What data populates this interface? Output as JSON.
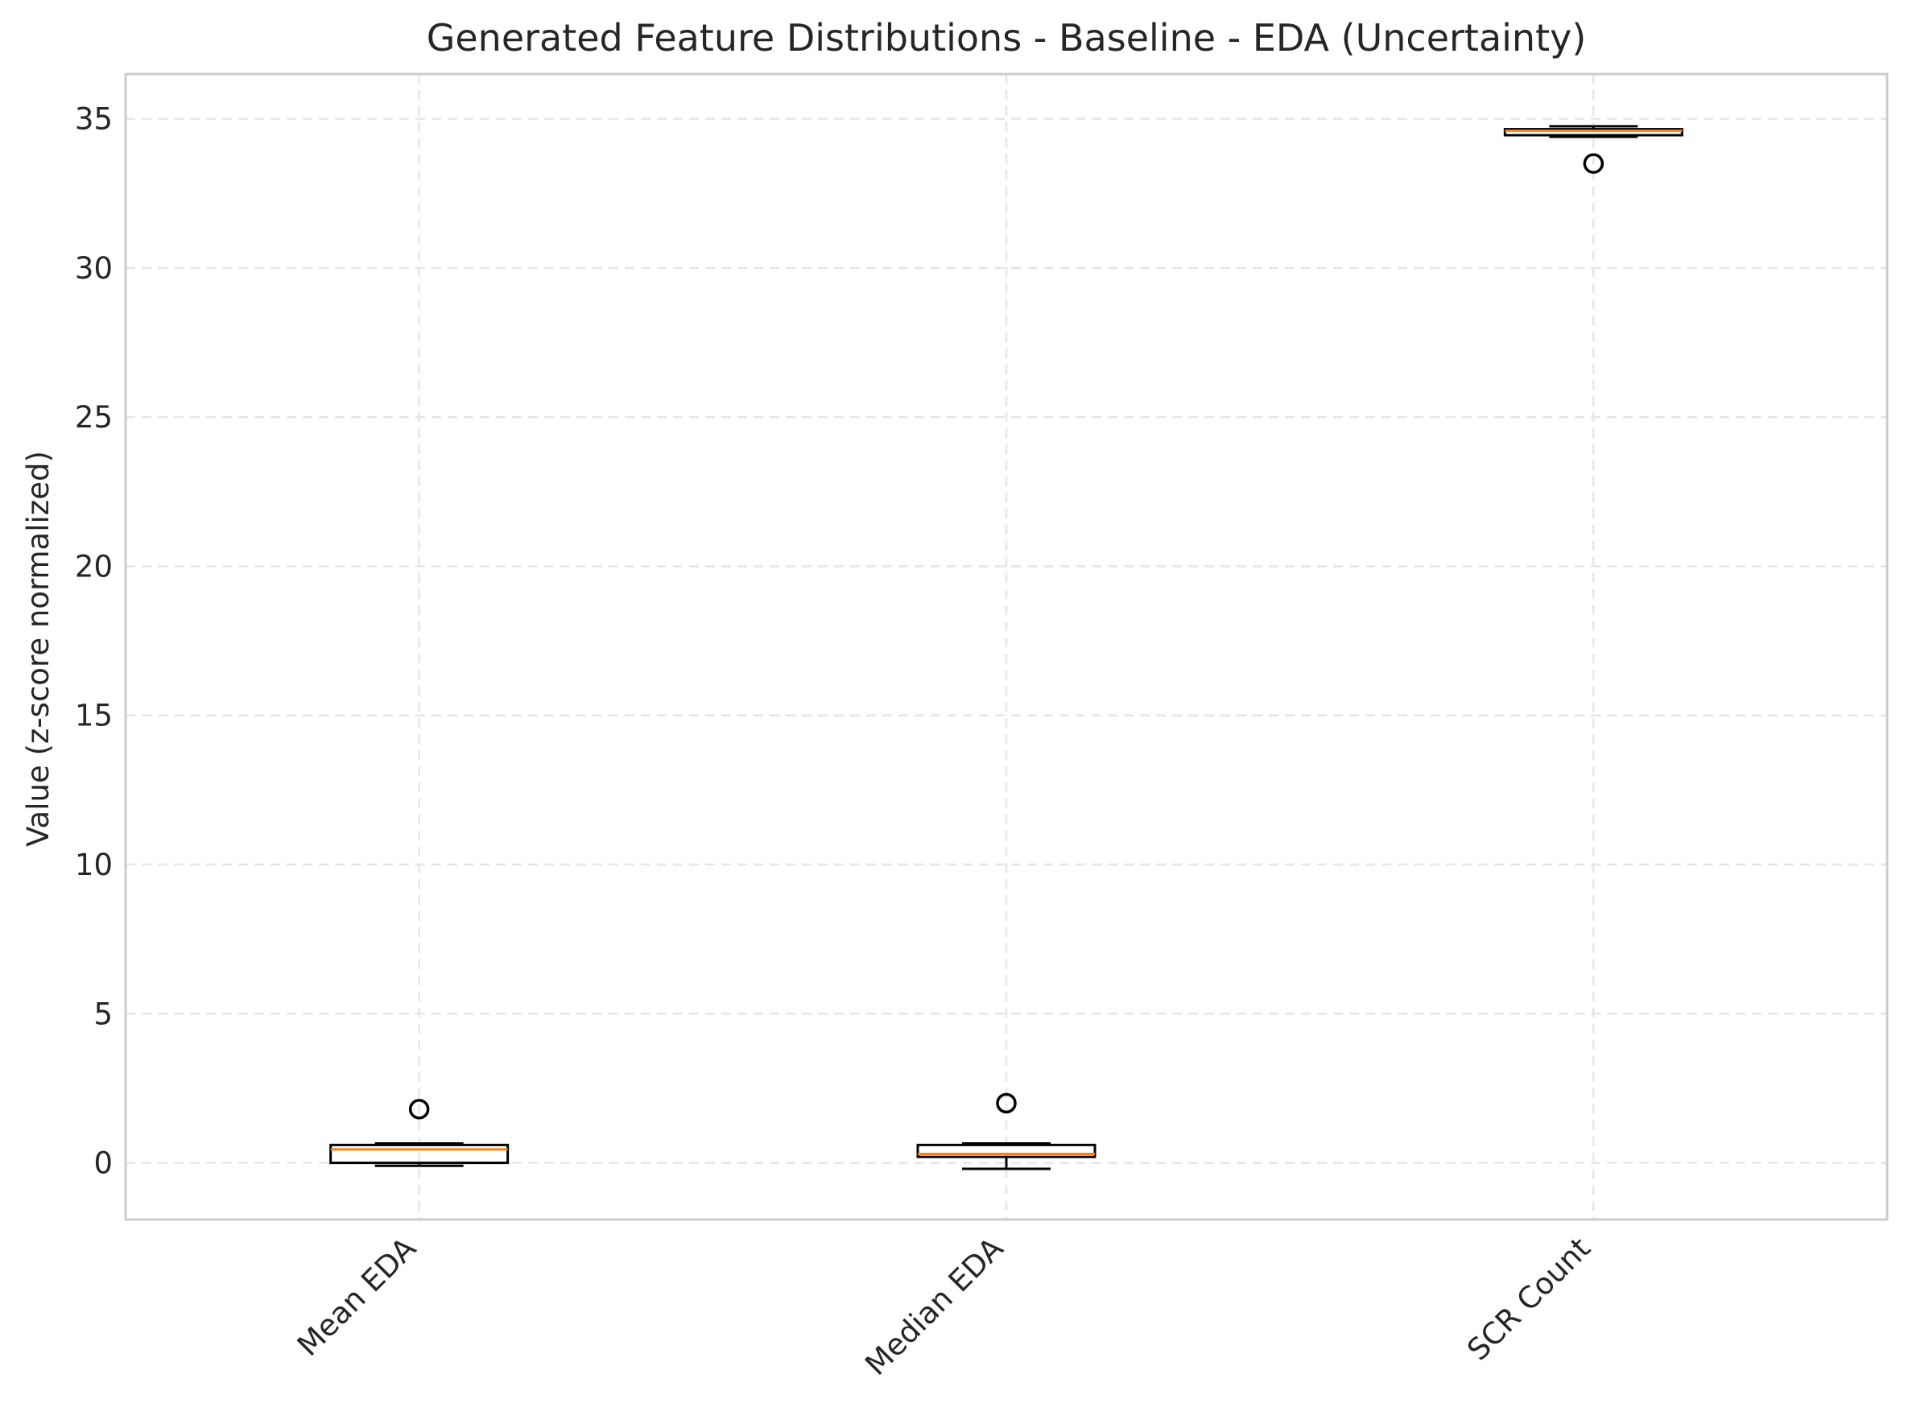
{
  "chart_data": {
    "type": "box",
    "title": "Generated Feature Distributions - Baseline - EDA (Uncertainty)",
    "xlabel": "",
    "ylabel": "Value (z-score normalized)",
    "ylim": [
      -1.9,
      36.5
    ],
    "yticks": [
      0,
      5,
      10,
      15,
      20,
      25,
      30,
      35
    ],
    "grid": true,
    "categories": [
      "Mean EDA",
      "Median EDA",
      "SCR Count"
    ],
    "boxes": [
      {
        "category": "Mean EDA",
        "whislo": -0.1,
        "q1": 0.0,
        "median": 0.45,
        "q3": 0.6,
        "whishi": 0.65,
        "fliers": [
          1.8
        ]
      },
      {
        "category": "Median EDA",
        "whislo": -0.2,
        "q1": 0.2,
        "median": 0.3,
        "q3": 0.6,
        "whishi": 0.65,
        "fliers": [
          2.0
        ]
      },
      {
        "category": "SCR Count",
        "whislo": 34.4,
        "q1": 34.45,
        "median": 34.6,
        "q3": 34.65,
        "whishi": 34.75,
        "fliers": [
          33.5
        ]
      }
    ],
    "colors": {
      "box": "#000000",
      "median": "#ff7f0e",
      "grid": "#e6e6e6",
      "axes": "#cccccc",
      "text": "#262626"
    }
  }
}
